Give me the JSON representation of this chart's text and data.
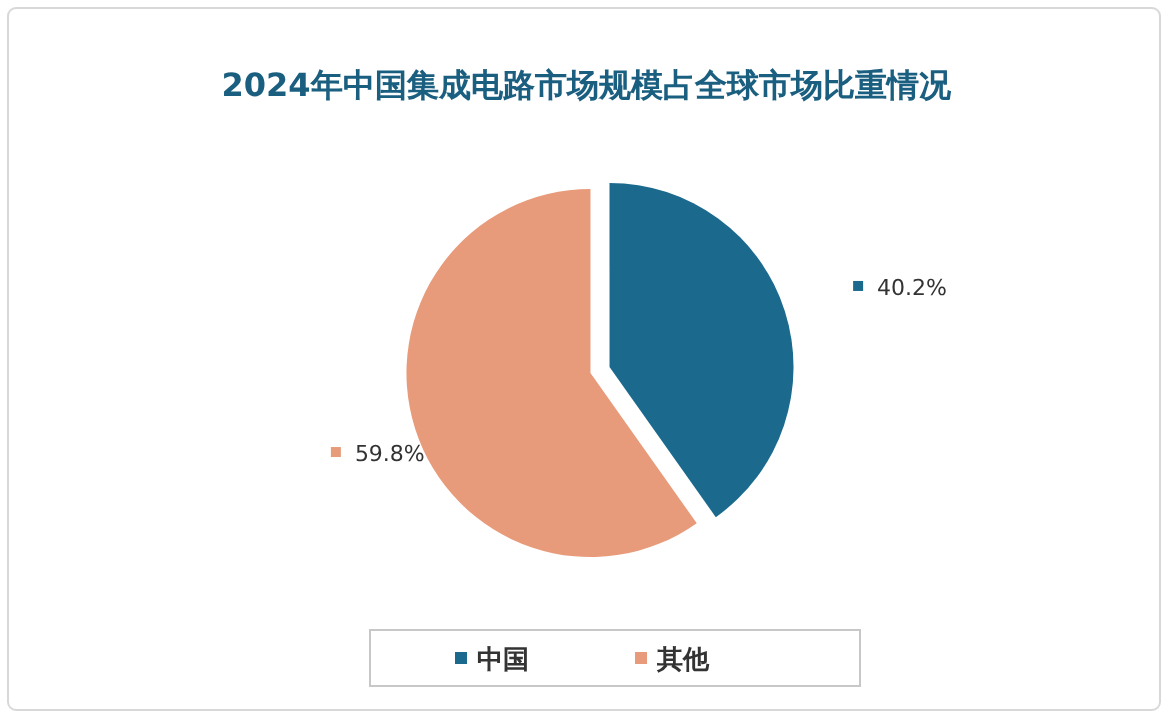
{
  "chart_data": {
    "type": "pie",
    "title": "2024年中国集成电路市场规模占全球市场比重情况",
    "categories": [
      "中国",
      "其他"
    ],
    "values": [
      40.2,
      59.8
    ],
    "colors": [
      "#1b6a8e",
      "#e89b7a"
    ],
    "value_labels": [
      "40.2%",
      "59.8%"
    ],
    "legend": "bottom"
  }
}
